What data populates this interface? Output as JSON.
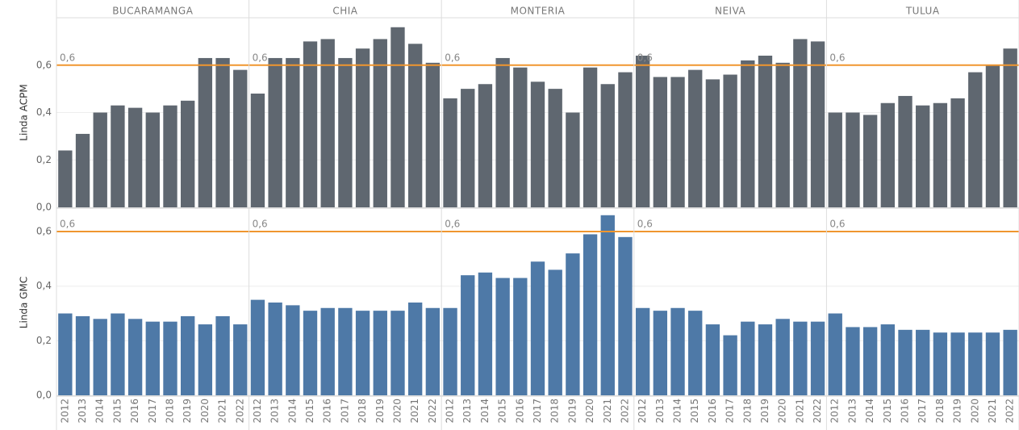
{
  "chart_data": {
    "type": "bar",
    "columns": [
      "BUCARAMANGA",
      "CHIA",
      "MONTERIA",
      "NEIVA",
      "TULUA"
    ],
    "categories": [
      "2012",
      "2013",
      "2014",
      "2015",
      "2016",
      "2017",
      "2018",
      "2019",
      "2020",
      "2021",
      "2022"
    ],
    "grid": true,
    "rows": [
      {
        "name": "Linda ACPM",
        "color": "#5f6770",
        "ylim": [
          0,
          0.8
        ],
        "yticks": [
          {
            "value": 0,
            "label": "0,0"
          },
          {
            "value": 0.2,
            "label": "0,2"
          },
          {
            "value": 0.4,
            "label": "0,4"
          },
          {
            "value": 0.6,
            "label": "0,6"
          }
        ],
        "reference_line": {
          "value": 0.6,
          "label": "0,6",
          "color": "#f0962f"
        },
        "panels": [
          [
            0.24,
            0.31,
            0.4,
            0.43,
            0.42,
            0.4,
            0.43,
            0.45,
            0.63,
            0.63,
            0.58
          ],
          [
            0.48,
            0.63,
            0.63,
            0.7,
            0.71,
            0.63,
            0.67,
            0.71,
            0.76,
            0.69,
            0.61
          ],
          [
            0.46,
            0.5,
            0.52,
            0.63,
            0.59,
            0.53,
            0.5,
            0.4,
            0.59,
            0.52,
            0.57
          ],
          [
            0.64,
            0.55,
            0.55,
            0.58,
            0.54,
            0.56,
            0.62,
            0.64,
            0.61,
            0.71,
            0.7
          ],
          [
            0.4,
            0.4,
            0.39,
            0.44,
            0.47,
            0.43,
            0.44,
            0.46,
            0.57,
            0.6,
            0.67
          ]
        ]
      },
      {
        "name": "Linda GMC",
        "color": "#4e79a7",
        "ylim": [
          0,
          0.68
        ],
        "yticks": [
          {
            "value": 0,
            "label": "0,0"
          },
          {
            "value": 0.2,
            "label": "0,2"
          },
          {
            "value": 0.4,
            "label": "0,4"
          },
          {
            "value": 0.6,
            "label": "0,6"
          }
        ],
        "reference_line": {
          "value": 0.6,
          "label": "0,6",
          "color": "#f0962f"
        },
        "panels": [
          [
            0.3,
            0.29,
            0.28,
            0.3,
            0.28,
            0.27,
            0.27,
            0.29,
            0.26,
            0.29,
            0.26
          ],
          [
            0.35,
            0.34,
            0.33,
            0.31,
            0.32,
            0.32,
            0.31,
            0.31,
            0.31,
            0.34,
            0.32
          ],
          [
            0.32,
            0.44,
            0.45,
            0.43,
            0.43,
            0.49,
            0.46,
            0.52,
            0.59,
            0.66,
            0.58
          ],
          [
            0.32,
            0.31,
            0.32,
            0.31,
            0.26,
            0.22,
            0.27,
            0.26,
            0.28,
            0.27,
            0.27
          ],
          [
            0.3,
            0.25,
            0.25,
            0.26,
            0.24,
            0.24,
            0.23,
            0.23,
            0.23,
            0.23,
            0.24
          ]
        ]
      }
    ]
  }
}
